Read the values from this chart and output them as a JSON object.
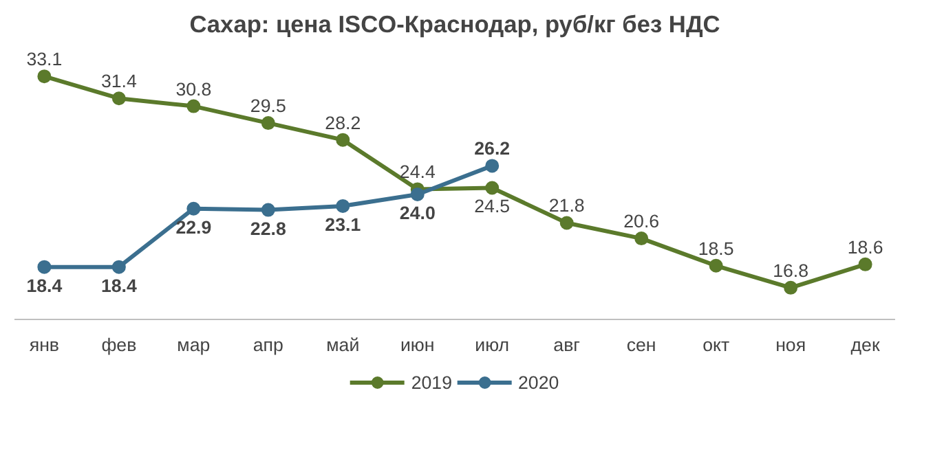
{
  "chart_data": {
    "type": "line",
    "title": "Сахар: цена ISCO-Краснодар, руб/кг без НДС",
    "categories": [
      "янв",
      "фев",
      "мар",
      "апр",
      "май",
      "июн",
      "июл",
      "авг",
      "сен",
      "окт",
      "ноя",
      "дек"
    ],
    "series": [
      {
        "name": "2019",
        "color": "#5b7a2b",
        "values": [
          33.1,
          31.4,
          30.8,
          29.5,
          28.2,
          24.4,
          24.5,
          21.8,
          20.6,
          18.5,
          16.8,
          18.6
        ]
      },
      {
        "name": "2020",
        "color": "#3b6f8f",
        "values": [
          18.4,
          18.4,
          22.9,
          22.8,
          23.1,
          24.0,
          26.2,
          null,
          null,
          null,
          null,
          null
        ],
        "value_labels": [
          "18.4",
          "18.4",
          "22.9",
          "22.8",
          "23.1",
          "24.0",
          "26.2",
          null,
          null,
          null,
          null,
          null
        ]
      }
    ],
    "data_labels": true,
    "marker": "circle",
    "grid": false,
    "legend": "bottom"
  }
}
